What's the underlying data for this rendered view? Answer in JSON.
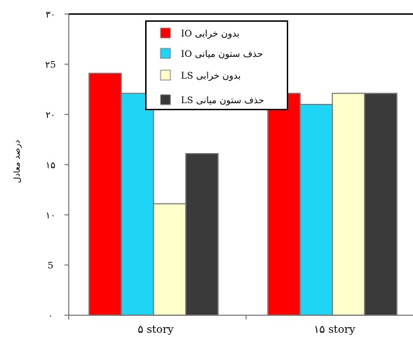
{
  "chart_data": {
    "type": "bar",
    "ylabel": "درصد معادل",
    "ylim": [
      0,
      30
    ],
    "yticks": [
      0,
      5,
      10,
      15,
      20,
      25,
      30
    ],
    "ytick_labels": [
      "۰",
      "5",
      "۱۰",
      "۱۵",
      "۲۰",
      "۲5",
      "۳۰"
    ],
    "categories": [
      "۵ story",
      "۱۵ story"
    ],
    "series": [
      {
        "name": "بدون خرابی IO",
        "color": "#ff0000",
        "values": [
          24.1,
          22.1
        ]
      },
      {
        "name": "حذف ستون میانی IO",
        "color": "#1ed5f5",
        "values": [
          22.1,
          21.0
        ]
      },
      {
        "name": "بدون خرابی LS",
        "color": "#ffffcc",
        "values": [
          11.1,
          22.1
        ]
      },
      {
        "name": "حذف ستون میانی LS",
        "color": "#3a3a3a",
        "values": [
          16.1,
          22.1
        ]
      }
    ],
    "legend_position": "top-center",
    "grid": false
  }
}
